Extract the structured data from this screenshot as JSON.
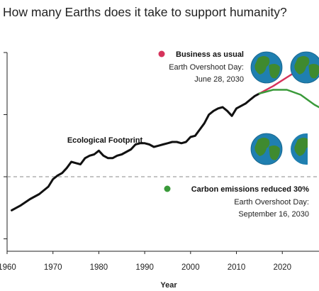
{
  "title": "How many Earths does it take to support humanity?",
  "chart_data": {
    "type": "line",
    "title": "How many Earths does it take to support humanity?",
    "xlabel": "Year",
    "ylabel": "",
    "xlim": [
      1960,
      2028
    ],
    "ylim": [
      0.4,
      2.0
    ],
    "x_ticks": [
      1960,
      1970,
      1980,
      1990,
      2000,
      2010,
      2020
    ],
    "y_ticks": [
      0.5,
      1.0,
      1.5,
      2.0
    ],
    "y_tick_labels": [
      "",
      "",
      "",
      ""
    ],
    "reference_line": {
      "y": 1.0,
      "style": "dashed"
    },
    "grid": false,
    "series": [
      {
        "name": "Ecological Footprint",
        "color": "#111111",
        "x": [
          1961,
          1963,
          1965,
          1967,
          1969,
          1970,
          1971,
          1972,
          1973,
          1974,
          1975,
          1976,
          1977,
          1978,
          1979,
          1980,
          1981,
          1982,
          1983,
          1984,
          1985,
          1986,
          1987,
          1988,
          1989,
          1990,
          1991,
          1992,
          1993,
          1994,
          1995,
          1996,
          1997,
          1998,
          1999,
          2000,
          2001,
          2002,
          2003,
          2004,
          2005,
          2006,
          2007,
          2008,
          2009,
          2010,
          2011,
          2012,
          2013,
          2014,
          2015
        ],
        "y": [
          0.73,
          0.77,
          0.82,
          0.86,
          0.92,
          0.98,
          1.01,
          1.03,
          1.07,
          1.12,
          1.11,
          1.1,
          1.15,
          1.17,
          1.18,
          1.21,
          1.17,
          1.15,
          1.15,
          1.17,
          1.18,
          1.2,
          1.22,
          1.26,
          1.27,
          1.27,
          1.26,
          1.24,
          1.25,
          1.26,
          1.27,
          1.28,
          1.28,
          1.27,
          1.28,
          1.32,
          1.33,
          1.38,
          1.43,
          1.5,
          1.53,
          1.55,
          1.56,
          1.53,
          1.49,
          1.55,
          1.57,
          1.59,
          1.62,
          1.65,
          1.67
        ]
      },
      {
        "name": "Business as usual",
        "color": "#d6335b",
        "x": [
          2015,
          2018,
          2021,
          2024,
          2027,
          2028
        ],
        "y": [
          1.67,
          1.73,
          1.8,
          1.87,
          1.93,
          1.95
        ]
      },
      {
        "name": "Carbon emissions reduced 30%",
        "color": "#3a9a3a",
        "x": [
          2015,
          2018,
          2021,
          2024,
          2027,
          2028
        ],
        "y": [
          1.67,
          1.7,
          1.7,
          1.66,
          1.58,
          1.56
        ]
      }
    ],
    "annotations": [
      {
        "series": "Ecological Footprint",
        "text": "Ecological Footprint"
      },
      {
        "series": "Business as usual",
        "label": "Business as usual",
        "detail_1": "Earth Overshoot Day:",
        "detail_2": "June 28, 2030",
        "earth_icons": 2
      },
      {
        "series": "Carbon emissions reduced 30%",
        "label": "Carbon emissions reduced 30%",
        "detail_1": "Earth Overshoot Day:",
        "detail_2": "September 16, 2030",
        "earth_icons": 2
      }
    ],
    "legend_placement": "inline"
  },
  "icons": {
    "earth": "earth-globe-icon"
  },
  "colors": {
    "ocean": "#1f7fb0",
    "land": "#3f8a2f",
    "bau": "#d6335b",
    "reduced": "#3a9a3a",
    "footprint": "#111111"
  }
}
